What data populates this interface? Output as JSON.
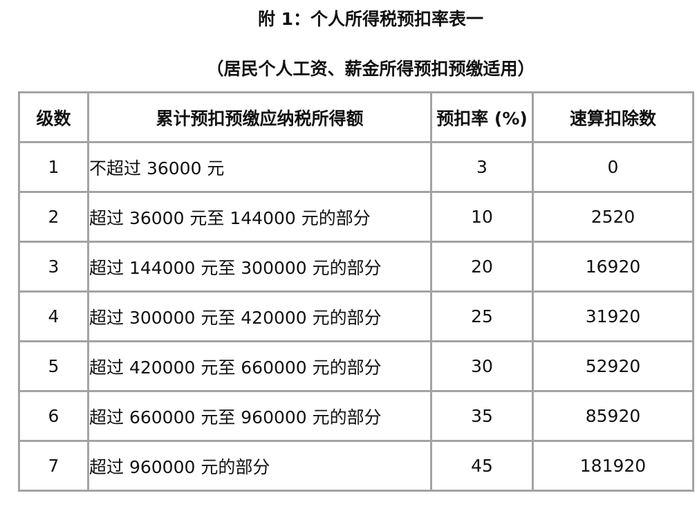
{
  "title": "附 1：个人所得税预扣率表一",
  "subtitle": "（居民个人工资、薪金所得预扣预缴适用）",
  "table": {
    "headers": [
      "级数",
      "累计预扣预缴应纳税所得额",
      "预扣率 (%)",
      "速算扣除数"
    ],
    "rows": [
      [
        "1",
        "不超过 36000 元",
        "3",
        "0"
      ],
      [
        "2",
        "超过 36000 元至 144000 元的部分",
        "10",
        "2520"
      ],
      [
        "3",
        "超过 144000 元至 300000 元的部分",
        "20",
        "16920"
      ],
      [
        "4",
        "超过 300000 元至 420000 元的部分",
        "25",
        "31920"
      ],
      [
        "5",
        "超过 420000 元至 660000 元的部分",
        "30",
        "52920"
      ],
      [
        "6",
        "超过 660000 元至 960000 元的部分",
        "35",
        "85920"
      ],
      [
        "7",
        "超过 960000 元的部分",
        "45",
        "181920"
      ]
    ]
  }
}
